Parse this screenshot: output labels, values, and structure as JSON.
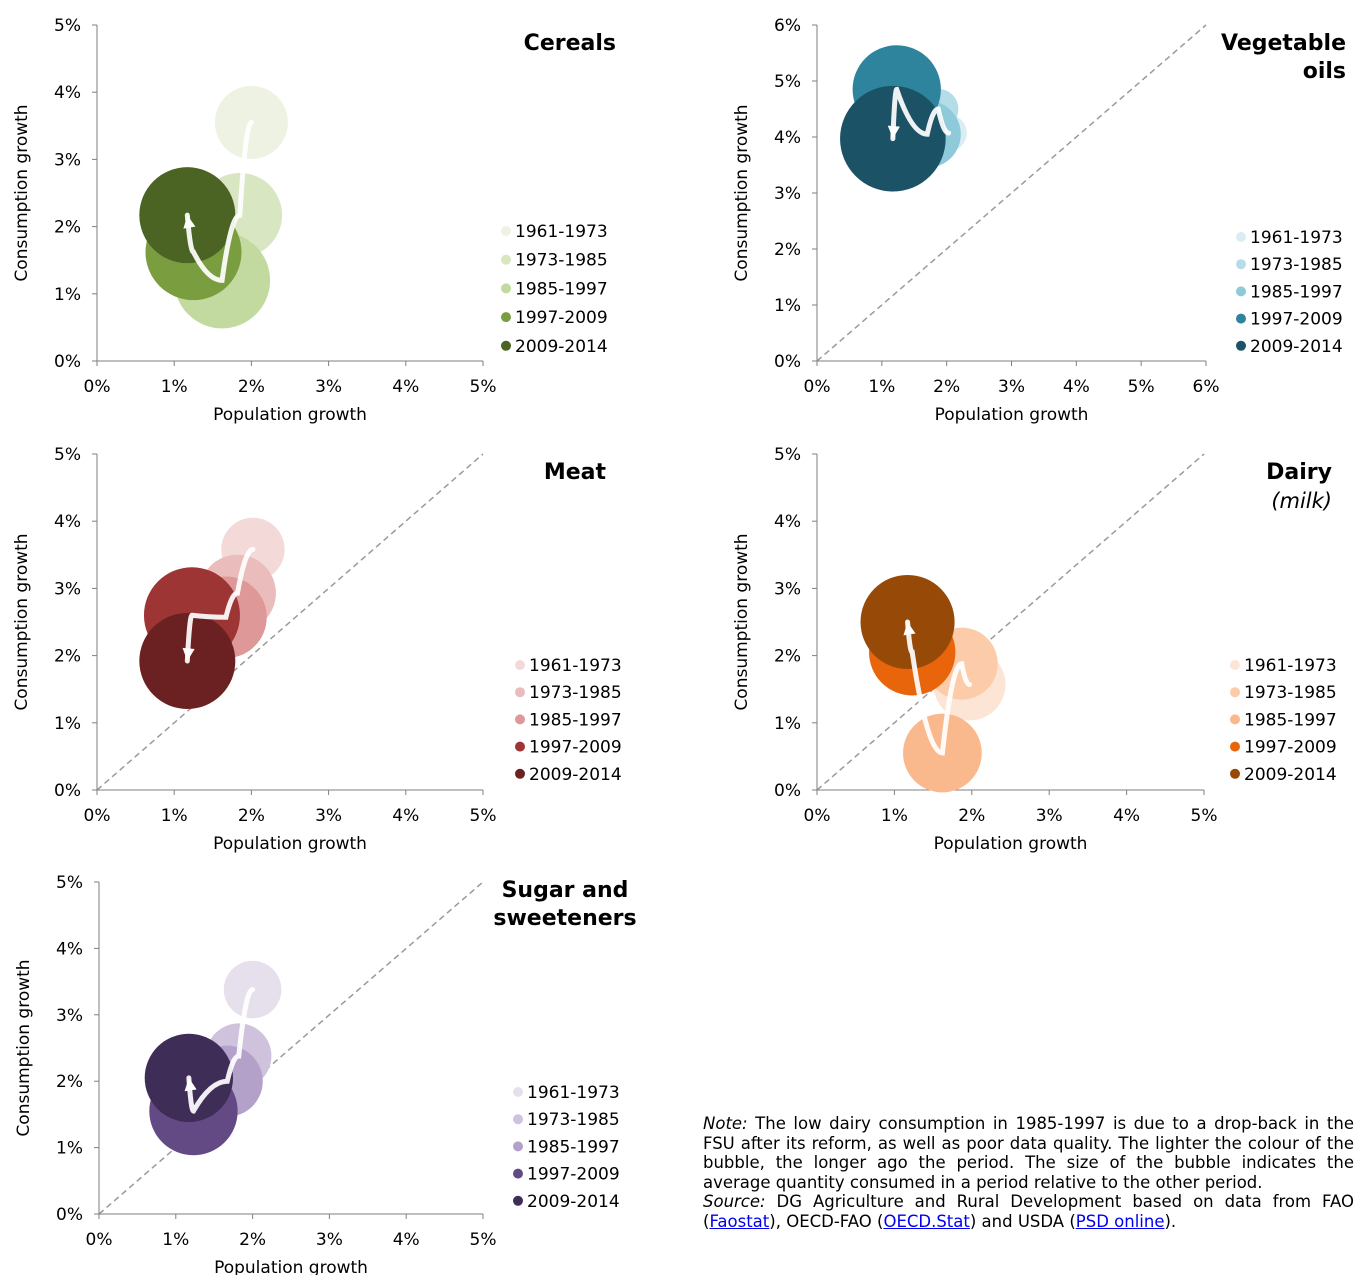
{
  "periods": [
    "1961-1973",
    "1973-1985",
    "1985-1997",
    "1997-2009",
    "2009-2014"
  ],
  "chart_data": [
    {
      "type": "scatter",
      "title": "Cereals",
      "xlabel": "Population growth",
      "ylabel": "Consumption growth",
      "xlim": [
        0,
        5
      ],
      "ylim": [
        0,
        5
      ],
      "xticks": [
        "0%",
        "1%",
        "2%",
        "3%",
        "4%",
        "5%"
      ],
      "yticks": [
        "0%",
        "1%",
        "2%",
        "3%",
        "4%",
        "5%"
      ],
      "diagonal": false,
      "legend_position": "right",
      "colors": [
        "#edf2e2",
        "#d8e6c2",
        "#c2d99f",
        "#7a9e3f",
        "#4b6424"
      ],
      "points": [
        {
          "period": "1961-1973",
          "x": 2.0,
          "y": 3.55,
          "size": 0.76
        },
        {
          "period": "1973-1985",
          "x": 1.85,
          "y": 2.17,
          "size": 0.88
        },
        {
          "period": "1985-1997",
          "x": 1.62,
          "y": 1.2,
          "size": 1.0
        },
        {
          "period": "1997-2009",
          "x": 1.25,
          "y": 1.62,
          "size": 1.0
        },
        {
          "period": "2009-2014",
          "x": 1.17,
          "y": 2.17,
          "size": 1.0
        }
      ],
      "arrow": {
        "from": "1961-1973",
        "to": "2009-2014"
      }
    },
    {
      "type": "scatter",
      "title": "Vegetable oils",
      "xlabel": "Population growth",
      "ylabel": "Consumption growth",
      "xlim": [
        0,
        6
      ],
      "ylim": [
        0,
        6
      ],
      "xticks": [
        "0%",
        "1%",
        "2%",
        "3%",
        "4%",
        "5%",
        "6%"
      ],
      "yticks": [
        "0%",
        "1%",
        "2%",
        "3%",
        "4%",
        "5%",
        "6%"
      ],
      "diagonal": true,
      "legend_position": "right",
      "colors": [
        "#d9edf3",
        "#b5dde8",
        "#8fcadb",
        "#2e849c",
        "#1b5266"
      ],
      "points": [
        {
          "period": "1961-1973",
          "x": 2.03,
          "y": 4.07,
          "size": 0.38
        },
        {
          "period": "1973-1985",
          "x": 1.87,
          "y": 4.5,
          "size": 0.42
        },
        {
          "period": "1985-1997",
          "x": 1.7,
          "y": 4.05,
          "size": 0.7
        },
        {
          "period": "1997-2009",
          "x": 1.23,
          "y": 4.85,
          "size": 0.92
        },
        {
          "period": "2009-2014",
          "x": 1.17,
          "y": 3.97,
          "size": 1.1
        }
      ],
      "arrow": {
        "from": "1961-1973",
        "to": "2009-2014"
      }
    },
    {
      "type": "scatter",
      "title": "Meat",
      "xlabel": "Population growth",
      "ylabel": "Consumption growth",
      "xlim": [
        0,
        5
      ],
      "ylim": [
        0,
        5
      ],
      "xticks": [
        "0%",
        "1%",
        "2%",
        "3%",
        "4%",
        "5%"
      ],
      "yticks": [
        "0%",
        "1%",
        "2%",
        "3%",
        "4%",
        "5%"
      ],
      "diagonal": true,
      "legend_position": "right",
      "colors": [
        "#f4d9d9",
        "#ebbcbc",
        "#df9898",
        "#9e3535",
        "#6b2121"
      ],
      "points": [
        {
          "period": "1961-1973",
          "x": 2.02,
          "y": 3.58,
          "size": 0.66
        },
        {
          "period": "1973-1985",
          "x": 1.82,
          "y": 2.93,
          "size": 0.8
        },
        {
          "period": "1985-1997",
          "x": 1.67,
          "y": 2.57,
          "size": 0.85
        },
        {
          "period": "1997-2009",
          "x": 1.23,
          "y": 2.6,
          "size": 1.0
        },
        {
          "period": "2009-2014",
          "x": 1.17,
          "y": 1.92,
          "size": 1.0
        }
      ],
      "arrow": {
        "from": "1961-1973",
        "to": "2009-2014"
      }
    },
    {
      "type": "scatter",
      "title": "Dairy",
      "subtitle": "(milk)",
      "xlabel": "Population growth",
      "ylabel": "Consumption growth",
      "xlim": [
        0,
        5
      ],
      "ylim": [
        0,
        5
      ],
      "xticks": [
        "0%",
        "1%",
        "2%",
        "3%",
        "4%",
        "5%"
      ],
      "yticks": [
        "0%",
        "1%",
        "2%",
        "3%",
        "4%",
        "5%"
      ],
      "diagonal": true,
      "legend_position": "right",
      "colors": [
        "#fde5d6",
        "#fccba9",
        "#fab88d",
        "#e8650c",
        "#974a08"
      ],
      "points": [
        {
          "period": "1961-1973",
          "x": 1.97,
          "y": 1.57,
          "size": 0.75
        },
        {
          "period": "1973-1985",
          "x": 1.87,
          "y": 1.88,
          "size": 0.75
        },
        {
          "period": "1985-1997",
          "x": 1.62,
          "y": 0.55,
          "size": 0.82
        },
        {
          "period": "1997-2009",
          "x": 1.23,
          "y": 2.05,
          "size": 0.9
        },
        {
          "period": "2009-2014",
          "x": 1.17,
          "y": 2.5,
          "size": 0.98
        }
      ],
      "arrow": {
        "from": "1961-1973",
        "to": "2009-2014"
      }
    },
    {
      "type": "scatter",
      "title": "Sugar and sweeteners",
      "xlabel": "Population growth",
      "ylabel": "Consumption growth",
      "xlim": [
        0,
        5
      ],
      "ylim": [
        0,
        5
      ],
      "xticks": [
        "0%",
        "1%",
        "2%",
        "3%",
        "4%",
        "5%"
      ],
      "yticks": [
        "0%",
        "1%",
        "2%",
        "3%",
        "4%",
        "5%"
      ],
      "diagonal": true,
      "legend_position": "right",
      "colors": [
        "#e6e0ec",
        "#cec2dd",
        "#b3a1c9",
        "#634a85",
        "#3e2d56"
      ],
      "points": [
        {
          "period": "1961-1973",
          "x": 2.0,
          "y": 3.38,
          "size": 0.6
        },
        {
          "period": "1973-1985",
          "x": 1.82,
          "y": 2.38,
          "size": 0.68
        },
        {
          "period": "1985-1997",
          "x": 1.67,
          "y": 2.0,
          "size": 0.74
        },
        {
          "period": "1997-2009",
          "x": 1.23,
          "y": 1.55,
          "size": 0.92
        },
        {
          "period": "2009-2014",
          "x": 1.17,
          "y": 2.05,
          "size": 0.92
        }
      ],
      "arrow": {
        "from": "1961-1973",
        "to": "2009-2014"
      }
    }
  ],
  "note": {
    "note_label": "Note:",
    "note_text": " The low dairy consumption in 1985-1997 is due to a drop-back in the FSU after its reform, as well as poor data quality. The lighter the colour of the bubble, the longer ago the period. The size of the bubble indicates the average quantity consumed in a period relative to the other period.",
    "source_label": "Source:",
    "source_text_1": " DG Agriculture and Rural Development based on data from FAO (",
    "link_faostat": "Faostat",
    "source_text_2": "), OECD-FAO (",
    "link_oecd": "OECD.Stat",
    "source_text_3": ") and USDA (",
    "link_psd": "PSD online",
    "source_text_4": ")."
  }
}
